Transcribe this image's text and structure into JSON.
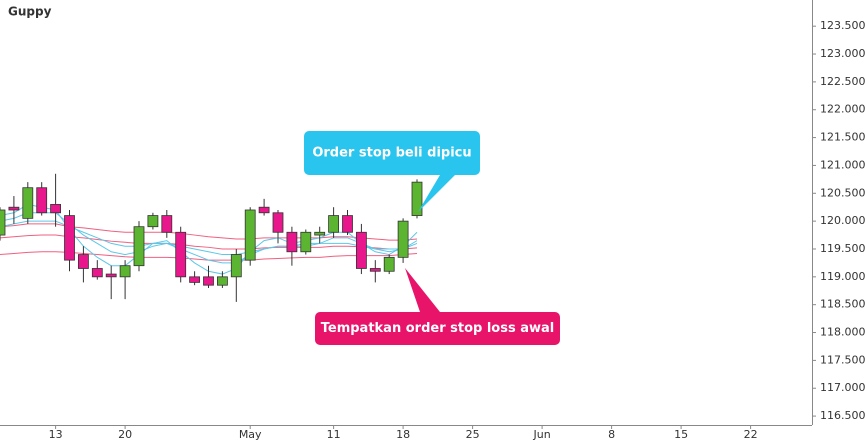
{
  "chart_data": {
    "type": "candlestick",
    "title": "Guppy",
    "categories": [
      null,
      null,
      null,
      null,
      "13",
      null,
      null,
      null,
      null,
      "20",
      null,
      null,
      null,
      null,
      null,
      null,
      null,
      null,
      "May",
      null,
      null,
      null,
      null,
      null,
      "11",
      null,
      null,
      null,
      null,
      "18",
      null,
      null,
      null,
      null,
      "25",
      null,
      null,
      null,
      null,
      "Jun",
      null,
      null,
      null,
      null,
      "8",
      null,
      null,
      null,
      null,
      "15",
      null,
      null,
      null,
      null,
      "22",
      null,
      null,
      null,
      null
    ],
    "open": [
      119.75,
      120.25,
      120.05,
      120.6,
      120.3,
      120.1,
      119.4,
      119.15,
      119.05,
      119.0,
      119.2,
      119.9,
      120.1,
      119.8,
      119.0,
      119.0,
      118.85,
      119.0,
      119.3,
      120.25,
      120.15,
      119.8,
      119.45,
      119.75,
      119.8,
      120.1,
      119.8,
      119.15,
      119.1,
      119.35,
      120.1,
      null,
      null,
      null,
      null,
      null,
      null,
      null,
      null,
      null,
      null,
      null,
      null,
      null,
      null,
      null,
      null,
      null,
      null,
      null,
      null,
      null,
      null,
      null,
      null,
      null,
      null,
      null,
      null
    ],
    "high": [
      120.25,
      120.45,
      120.7,
      120.7,
      120.85,
      120.2,
      119.55,
      119.3,
      119.2,
      119.3,
      120.0,
      120.15,
      120.2,
      119.9,
      119.1,
      119.2,
      119.1,
      119.5,
      120.25,
      120.4,
      120.2,
      119.9,
      119.85,
      119.9,
      120.25,
      120.2,
      119.95,
      119.3,
      119.4,
      120.05,
      120.75,
      null,
      null,
      null,
      null,
      null,
      null,
      null,
      null,
      null,
      null,
      null,
      null,
      null,
      null,
      null,
      null,
      null,
      null,
      null,
      null,
      null,
      null,
      null,
      null,
      null,
      null,
      null,
      null
    ],
    "low": [
      119.65,
      119.95,
      119.95,
      120.1,
      119.9,
      119.1,
      118.9,
      118.95,
      118.6,
      118.6,
      119.1,
      119.85,
      119.7,
      118.9,
      118.85,
      118.8,
      118.8,
      118.55,
      119.2,
      120.1,
      119.6,
      119.2,
      119.4,
      119.6,
      119.7,
      119.75,
      119.05,
      118.9,
      119.05,
      119.25,
      120.05,
      null,
      null,
      null,
      null,
      null,
      null,
      null,
      null,
      null,
      null,
      null,
      null,
      null,
      null,
      null,
      null,
      null,
      null,
      null,
      null,
      null,
      null,
      null,
      null,
      null,
      null,
      null,
      null
    ],
    "close": [
      120.2,
      120.2,
      120.6,
      120.15,
      120.15,
      119.3,
      119.15,
      119.0,
      119.0,
      119.2,
      119.9,
      120.1,
      119.8,
      119.0,
      118.9,
      118.85,
      119.0,
      119.4,
      120.2,
      120.15,
      119.8,
      119.45,
      119.8,
      119.8,
      120.1,
      119.8,
      119.15,
      119.1,
      119.35,
      120.0,
      120.7,
      null,
      null,
      null,
      null,
      null,
      null,
      null,
      null,
      null,
      null,
      null,
      null,
      null,
      null,
      null,
      null,
      null,
      null,
      null,
      null,
      null,
      null,
      null,
      null,
      null,
      null,
      null,
      null
    ],
    "up_color": "#5cb531",
    "down_color": "#e8178c",
    "series": [
      {
        "color": "#f06080",
        "values": [
          119.9,
          119.92,
          119.95,
          119.95,
          119.95,
          119.9,
          119.88,
          119.85,
          119.82,
          119.8,
          119.8,
          119.8,
          119.8,
          119.78,
          119.75,
          119.72,
          119.7,
          119.68,
          119.68,
          119.7,
          119.7,
          119.7,
          119.7,
          119.7,
          119.72,
          119.72,
          119.7,
          119.68,
          119.66,
          119.66,
          119.68,
          null,
          null,
          null,
          null,
          null,
          null,
          null,
          null,
          null,
          null,
          null,
          null,
          null,
          null,
          null,
          null,
          null,
          null,
          null,
          null,
          null,
          null,
          null,
          null,
          null,
          null,
          null,
          null
        ]
      },
      {
        "color": "#f06080",
        "values": [
          119.7,
          119.72,
          119.74,
          119.75,
          119.75,
          119.72,
          119.7,
          119.67,
          119.64,
          119.62,
          119.6,
          119.6,
          119.6,
          119.58,
          119.55,
          119.53,
          119.5,
          119.5,
          119.5,
          119.52,
          119.53,
          119.53,
          119.53,
          119.53,
          119.55,
          119.55,
          119.54,
          119.52,
          119.5,
          119.5,
          119.52,
          null,
          null,
          null,
          null,
          null,
          null,
          null,
          null,
          null,
          null,
          null,
          null,
          null,
          null,
          null,
          null,
          null,
          null,
          null,
          null,
          null,
          null,
          null,
          null,
          null,
          null,
          null,
          null
        ]
      },
      {
        "color": "#f06080",
        "values": [
          119.4,
          119.42,
          119.44,
          119.45,
          119.45,
          119.44,
          119.42,
          119.4,
          119.38,
          119.36,
          119.35,
          119.35,
          119.35,
          119.34,
          119.32,
          119.3,
          119.3,
          119.3,
          119.3,
          119.32,
          119.33,
          119.34,
          119.35,
          119.35,
          119.37,
          119.38,
          119.38,
          119.38,
          119.38,
          119.4,
          119.42,
          null,
          null,
          null,
          null,
          null,
          null,
          null,
          null,
          null,
          null,
          null,
          null,
          null,
          null,
          null,
          null,
          null,
          null,
          null,
          null,
          null,
          null,
          null,
          null,
          null,
          null,
          null,
          null
        ]
      },
      {
        "color": "#5bc8e8",
        "values": [
          119.9,
          119.95,
          120.0,
          120.0,
          120.0,
          119.9,
          119.8,
          119.7,
          119.6,
          119.55,
          119.55,
          119.6,
          119.6,
          119.55,
          119.5,
          119.45,
          119.4,
          119.4,
          119.45,
          119.5,
          119.55,
          119.55,
          119.55,
          119.6,
          119.6,
          119.6,
          119.55,
          119.5,
          119.5,
          119.5,
          119.6,
          null,
          null,
          null,
          null,
          null,
          null,
          null,
          null,
          null,
          null,
          null,
          null,
          null,
          null,
          null,
          null,
          null,
          null,
          null,
          null,
          null,
          null,
          null,
          null,
          null,
          null,
          null,
          null
        ]
      },
      {
        "color": "#5bc8e8",
        "values": [
          120.0,
          120.05,
          120.15,
          120.15,
          120.15,
          119.95,
          119.75,
          119.6,
          119.45,
          119.4,
          119.45,
          119.55,
          119.6,
          119.5,
          119.4,
          119.3,
          119.25,
          119.25,
          119.4,
          119.5,
          119.55,
          119.55,
          119.6,
          119.6,
          119.7,
          119.7,
          119.6,
          119.5,
          119.45,
          119.5,
          119.65,
          null,
          null,
          null,
          null,
          null,
          null,
          null,
          null,
          null,
          null,
          null,
          null,
          null,
          null,
          null,
          null,
          null,
          null,
          null,
          null,
          null,
          null,
          null,
          null,
          null,
          null,
          null,
          null
        ]
      },
      {
        "color": "#5bc8e8",
        "values": [
          120.1,
          120.15,
          120.3,
          120.25,
          120.2,
          119.85,
          119.55,
          119.35,
          119.2,
          119.2,
          119.4,
          119.6,
          119.65,
          119.45,
          119.25,
          119.1,
          119.05,
          119.15,
          119.45,
          119.65,
          119.7,
          119.6,
          119.65,
          119.7,
          119.8,
          119.8,
          119.6,
          119.45,
          119.4,
          119.55,
          119.8,
          null,
          null,
          null,
          null,
          null,
          null,
          null,
          null,
          null,
          null,
          null,
          null,
          null,
          null,
          null,
          null,
          null,
          null,
          null,
          null,
          null,
          null,
          null,
          null,
          null,
          null,
          null,
          null
        ]
      }
    ],
    "ylim": [
      116.34,
      123.97
    ],
    "yticks": [
      {
        "value": 116.5,
        "label": "116.500"
      },
      {
        "value": 117,
        "label": "117.000"
      },
      {
        "value": 117.5,
        "label": "117.500"
      },
      {
        "value": 118,
        "label": "118.000"
      },
      {
        "value": 118.5,
        "label": "118.500"
      },
      {
        "value": 119,
        "label": "119.000"
      },
      {
        "value": 119.5,
        "label": "119.500"
      },
      {
        "value": 120,
        "label": "120.000"
      },
      {
        "value": 120.5,
        "label": "120.500"
      },
      {
        "value": 121,
        "label": "121.000"
      },
      {
        "value": 121.5,
        "label": "121.500"
      },
      {
        "value": 122,
        "label": "122.000"
      },
      {
        "value": 122.5,
        "label": "122.500"
      },
      {
        "value": 123,
        "label": "123.000"
      },
      {
        "value": 123.5,
        "label": "123.500"
      }
    ],
    "annotations": [
      {
        "text": "Order stop beli dipicu",
        "color": "#29c5ee"
      },
      {
        "text": "Tempatkan order stop loss awal",
        "color": "#e8146a"
      }
    ]
  }
}
